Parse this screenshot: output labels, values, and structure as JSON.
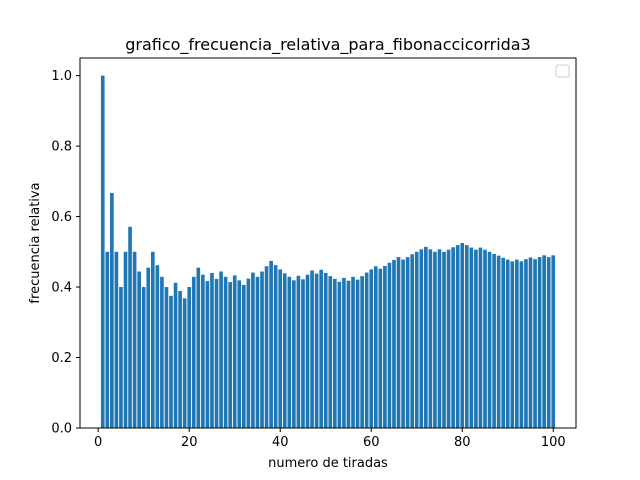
{
  "chart_data": {
    "type": "bar",
    "title": "grafico_frecuencia_relativa_para_fibonaccicorrida3",
    "xlabel": "numero de tiradas",
    "ylabel": "frecuencia relativa",
    "xlim": [
      -4,
      105
    ],
    "ylim": [
      0,
      1.05
    ],
    "x_ticks": [
      0,
      20,
      40,
      60,
      80,
      100
    ],
    "y_ticks": [
      "0.0",
      "0.2",
      "0.4",
      "0.6",
      "0.8",
      "1.0"
    ],
    "bar_color": "#1f77b4",
    "legend": "top-right",
    "grid": false,
    "x": [
      1,
      2,
      3,
      4,
      5,
      6,
      7,
      8,
      9,
      10,
      11,
      12,
      13,
      14,
      15,
      16,
      17,
      18,
      19,
      20,
      21,
      22,
      23,
      24,
      25,
      26,
      27,
      28,
      29,
      30,
      31,
      32,
      33,
      34,
      35,
      36,
      37,
      38,
      39,
      40,
      41,
      42,
      43,
      44,
      45,
      46,
      47,
      48,
      49,
      50,
      51,
      52,
      53,
      54,
      55,
      56,
      57,
      58,
      59,
      60,
      61,
      62,
      63,
      64,
      65,
      66,
      67,
      68,
      69,
      70,
      71,
      72,
      73,
      74,
      75,
      76,
      77,
      78,
      79,
      80,
      81,
      82,
      83,
      84,
      85,
      86,
      87,
      88,
      89,
      90,
      91,
      92,
      93,
      94,
      95,
      96,
      97,
      98,
      99,
      100
    ],
    "values": [
      1.0,
      0.5,
      0.667,
      0.5,
      0.4,
      0.5,
      0.571,
      0.5,
      0.444,
      0.4,
      0.455,
      0.5,
      0.462,
      0.429,
      0.4,
      0.375,
      0.412,
      0.389,
      0.368,
      0.4,
      0.429,
      0.455,
      0.435,
      0.417,
      0.44,
      0.423,
      0.444,
      0.429,
      0.414,
      0.433,
      0.419,
      0.406,
      0.424,
      0.441,
      0.429,
      0.444,
      0.459,
      0.474,
      0.462,
      0.45,
      0.439,
      0.429,
      0.419,
      0.432,
      0.422,
      0.435,
      0.447,
      0.438,
      0.449,
      0.44,
      0.431,
      0.423,
      0.415,
      0.426,
      0.418,
      0.429,
      0.421,
      0.431,
      0.441,
      0.45,
      0.459,
      0.452,
      0.46,
      0.469,
      0.477,
      0.485,
      0.478,
      0.485,
      0.493,
      0.5,
      0.507,
      0.514,
      0.507,
      0.5,
      0.507,
      0.5,
      0.506,
      0.513,
      0.519,
      0.525,
      0.519,
      0.512,
      0.506,
      0.512,
      0.506,
      0.5,
      0.494,
      0.489,
      0.483,
      0.478,
      0.473,
      0.478,
      0.473,
      0.479,
      0.484,
      0.479,
      0.485,
      0.49,
      0.485,
      0.49
    ]
  }
}
